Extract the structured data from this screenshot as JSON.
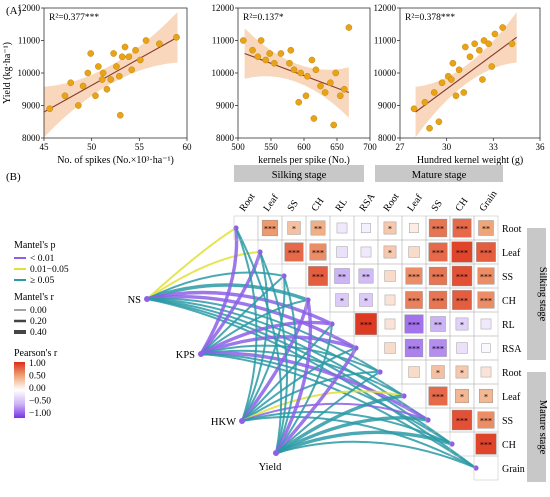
{
  "panel_labels": {
    "a": "(A)",
    "b": "(B)"
  },
  "chart_data": [
    {
      "type": "scatter",
      "ylabel": "Yield (kg·ha⁻¹)",
      "xlabel": "No. of spikes (No.×10³·ha⁻¹)",
      "annotation": "R²=0.377***",
      "xlim": [
        45,
        60
      ],
      "ylim": [
        8000,
        12000
      ],
      "xticks": [
        "45",
        "50",
        "55",
        "60"
      ],
      "yticks": [
        "8000",
        "9000",
        "10000",
        "11000",
        "12000"
      ],
      "points": [
        [
          45.6,
          8900
        ],
        [
          47.2,
          9300
        ],
        [
          47.8,
          9700
        ],
        [
          48.6,
          9000
        ],
        [
          49.1,
          9600
        ],
        [
          49.6,
          10000
        ],
        [
          49.9,
          10600
        ],
        [
          50.4,
          9300
        ],
        [
          50.7,
          10200
        ],
        [
          51.2,
          10000
        ],
        [
          51.6,
          9500
        ],
        [
          52.0,
          9800
        ],
        [
          52.3,
          10600
        ],
        [
          52.6,
          10200
        ],
        [
          52.9,
          9900
        ],
        [
          53.2,
          10500
        ],
        [
          53.5,
          10800
        ],
        [
          53.9,
          10500
        ],
        [
          54.2,
          10100
        ],
        [
          54.6,
          10700
        ],
        [
          55.1,
          10400
        ],
        [
          55.7,
          11000
        ],
        [
          57.1,
          10900
        ],
        [
          58.9,
          11100
        ],
        [
          53.0,
          8700
        ],
        [
          51.1,
          9800
        ]
      ],
      "fit": [
        [
          45,
          8800
        ],
        [
          59,
          11100
        ]
      ],
      "colors": {
        "point": "#e8a317",
        "line": "#8b3a2e",
        "band": "#f5c9a6"
      }
    },
    {
      "type": "scatter",
      "ylabel": "",
      "xlabel": "kernels per spike (No.)",
      "annotation": "R²=0.137*",
      "xlim": [
        500,
        700
      ],
      "ylim": [
        8000,
        12000
      ],
      "xticks": [
        "500",
        "550",
        "600",
        "650",
        "700"
      ],
      "yticks": [
        "8000",
        "9000",
        "10000",
        "11000",
        "12000"
      ],
      "points": [
        [
          508,
          11000
        ],
        [
          522,
          10700
        ],
        [
          535,
          11000
        ],
        [
          548,
          10600
        ],
        [
          555,
          10300
        ],
        [
          565,
          10600
        ],
        [
          578,
          10300
        ],
        [
          585,
          10100
        ],
        [
          595,
          10000
        ],
        [
          605,
          9900
        ],
        [
          612,
          10400
        ],
        [
          618,
          10100
        ],
        [
          625,
          9600
        ],
        [
          632,
          9400
        ],
        [
          640,
          9700
        ],
        [
          648,
          10000
        ],
        [
          655,
          9300
        ],
        [
          661,
          9500
        ],
        [
          668,
          11400
        ],
        [
          603,
          9300
        ],
        [
          592,
          9100
        ],
        [
          542,
          10400
        ],
        [
          530,
          10500
        ],
        [
          615,
          8600
        ],
        [
          645,
          8400
        ],
        [
          580,
          10700
        ]
      ],
      "fit": [
        [
          510,
          10600
        ],
        [
          668,
          9400
        ]
      ],
      "colors": {
        "point": "#e8a317",
        "line": "#8b3a2e",
        "band": "#f5c9a6"
      }
    },
    {
      "type": "scatter",
      "ylabel": "",
      "xlabel": "Hundred kernel weight (g)",
      "annotation": "R²=0.378***",
      "xlim": [
        27,
        36
      ],
      "ylim": [
        8000,
        12000
      ],
      "xticks": [
        "27",
        "30",
        "33",
        "36"
      ],
      "yticks": [
        "8000",
        "9000",
        "10000",
        "11000",
        "12000"
      ],
      "points": [
        [
          27.9,
          8900
        ],
        [
          28.6,
          9100
        ],
        [
          29.2,
          9400
        ],
        [
          29.7,
          9700
        ],
        [
          30.1,
          9900
        ],
        [
          30.4,
          10300
        ],
        [
          30.8,
          10100
        ],
        [
          31.2,
          10800
        ],
        [
          31.5,
          10500
        ],
        [
          31.8,
          10900
        ],
        [
          32.1,
          10700
        ],
        [
          32.4,
          11000
        ],
        [
          32.7,
          10900
        ],
        [
          33.1,
          11200
        ],
        [
          33.6,
          11400
        ],
        [
          34.2,
          10900
        ],
        [
          31.1,
          9400
        ],
        [
          30.6,
          9300
        ],
        [
          30.3,
          9800
        ],
        [
          32.3,
          9800
        ],
        [
          32.9,
          10200
        ],
        [
          29.5,
          8500
        ],
        [
          28.9,
          8300
        ]
      ],
      "fit": [
        [
          28,
          8800
        ],
        [
          34.5,
          11100
        ]
      ],
      "colors": {
        "point": "#e8a317",
        "line": "#8b3a2e",
        "band": "#f5c9a6"
      }
    },
    {
      "type": "heatmap",
      "stage_headers": [
        "Silking stage",
        "Mature stage"
      ],
      "columns": [
        "Root",
        "Leaf",
        "SS",
        "CH",
        "RL",
        "RSA",
        "Root",
        "Leaf",
        "SS",
        "CH",
        "Grain"
      ],
      "rows": [
        "Root",
        "Leaf",
        "SS",
        "CH",
        "RL",
        "RSA",
        "Root",
        "Leaf",
        "SS",
        "CH",
        "Grain"
      ],
      "cells": [
        [
          0,
          1,
          0.55,
          "***"
        ],
        [
          0,
          2,
          0.35,
          "*"
        ],
        [
          0,
          3,
          0.45,
          "**"
        ],
        [
          0,
          4,
          -0.15,
          ""
        ],
        [
          0,
          5,
          -0.1,
          ""
        ],
        [
          0,
          6,
          0.3,
          "*"
        ],
        [
          0,
          7,
          0.1,
          ""
        ],
        [
          0,
          8,
          0.7,
          "***"
        ],
        [
          0,
          9,
          0.75,
          "***"
        ],
        [
          0,
          10,
          0.5,
          "**"
        ],
        [
          1,
          2,
          0.75,
          "***"
        ],
        [
          1,
          3,
          0.6,
          "***"
        ],
        [
          1,
          4,
          -0.2,
          ""
        ],
        [
          1,
          5,
          -0.15,
          ""
        ],
        [
          1,
          6,
          0.3,
          "*"
        ],
        [
          1,
          7,
          0.2,
          ""
        ],
        [
          1,
          8,
          0.75,
          "***"
        ],
        [
          1,
          9,
          0.9,
          "***"
        ],
        [
          1,
          10,
          0.8,
          "***"
        ],
        [
          2,
          3,
          0.8,
          "***"
        ],
        [
          2,
          4,
          -0.5,
          "**"
        ],
        [
          2,
          5,
          -0.45,
          "**"
        ],
        [
          2,
          6,
          0.2,
          ""
        ],
        [
          2,
          7,
          0.6,
          "***"
        ],
        [
          2,
          8,
          0.7,
          "***"
        ],
        [
          2,
          9,
          0.85,
          "***"
        ],
        [
          2,
          10,
          0.6,
          "***"
        ],
        [
          3,
          4,
          -0.35,
          "*"
        ],
        [
          3,
          5,
          -0.35,
          "*"
        ],
        [
          3,
          6,
          0.15,
          ""
        ],
        [
          3,
          7,
          0.65,
          "***"
        ],
        [
          3,
          8,
          0.7,
          "***"
        ],
        [
          3,
          9,
          0.8,
          "***"
        ],
        [
          3,
          10,
          0.6,
          "***"
        ],
        [
          4,
          5,
          0.95,
          "***"
        ],
        [
          4,
          6,
          0.15,
          ""
        ],
        [
          4,
          7,
          -0.75,
          "***"
        ],
        [
          4,
          8,
          -0.5,
          "**"
        ],
        [
          4,
          9,
          -0.3,
          "*"
        ],
        [
          4,
          10,
          -0.15,
          ""
        ],
        [
          5,
          6,
          0.2,
          ""
        ],
        [
          5,
          7,
          -0.7,
          "***"
        ],
        [
          5,
          8,
          -0.65,
          "***"
        ],
        [
          5,
          9,
          -0.2,
          ""
        ],
        [
          5,
          10,
          -0.05,
          ""
        ],
        [
          6,
          7,
          0.2,
          ""
        ],
        [
          6,
          8,
          0.35,
          "*"
        ],
        [
          6,
          9,
          0.3,
          "*"
        ],
        [
          6,
          10,
          0.15,
          ""
        ],
        [
          7,
          8,
          0.75,
          "***"
        ],
        [
          7,
          9,
          0.4,
          "*"
        ],
        [
          7,
          10,
          0.4,
          "*"
        ],
        [
          8,
          9,
          0.85,
          "***"
        ],
        [
          8,
          10,
          0.6,
          "***"
        ],
        [
          9,
          10,
          0.9,
          "***"
        ]
      ],
      "side_stage_labels": [
        "Silking stage",
        "Mature stage"
      ]
    },
    {
      "type": "network",
      "nodes": [
        "NS",
        "KPS",
        "HKW",
        "Yield"
      ],
      "edges": [
        [
          "NS",
          0,
          "p2",
          "r1"
        ],
        [
          "NS",
          1,
          "p2",
          "r1"
        ],
        [
          "NS",
          2,
          "p3",
          "r1"
        ],
        [
          "NS",
          3,
          "p3",
          "r2"
        ],
        [
          "NS",
          4,
          "p1",
          "r2"
        ],
        [
          "NS",
          5,
          "p1",
          "r2"
        ],
        [
          "NS",
          6,
          "p3",
          "r1"
        ],
        [
          "NS",
          7,
          "p3",
          "r1"
        ],
        [
          "NS",
          8,
          "p3",
          "r1"
        ],
        [
          "NS",
          9,
          "p3",
          "r1"
        ],
        [
          "NS",
          10,
          "p3",
          "r1"
        ],
        [
          "KPS",
          0,
          "p1",
          "r2"
        ],
        [
          "KPS",
          1,
          "p1",
          "r2"
        ],
        [
          "KPS",
          2,
          "p3",
          "r1"
        ],
        [
          "KPS",
          3,
          "p3",
          "r1"
        ],
        [
          "KPS",
          4,
          "p1",
          "r2"
        ],
        [
          "KPS",
          5,
          "p1",
          "r2"
        ],
        [
          "KPS",
          6,
          "p3",
          "r1"
        ],
        [
          "KPS",
          7,
          "p3",
          "r1"
        ],
        [
          "KPS",
          8,
          "p1",
          "r2"
        ],
        [
          "KPS",
          9,
          "p3",
          "r1"
        ],
        [
          "KPS",
          10,
          "p3",
          "r1"
        ],
        [
          "HKW",
          0,
          "p3",
          "r1"
        ],
        [
          "HKW",
          1,
          "p3",
          "r1"
        ],
        [
          "HKW",
          2,
          "p3",
          "r1"
        ],
        [
          "HKW",
          3,
          "p1",
          "r2"
        ],
        [
          "HKW",
          4,
          "p3",
          "r1"
        ],
        [
          "HKW",
          5,
          "p3",
          "r1"
        ],
        [
          "HKW",
          6,
          "p3",
          "r1"
        ],
        [
          "HKW",
          7,
          "p2",
          "r1"
        ],
        [
          "HKW",
          8,
          "p1",
          "r1"
        ],
        [
          "HKW",
          9,
          "p3",
          "r1"
        ],
        [
          "HKW",
          10,
          "p3",
          "r1"
        ],
        [
          "Yield",
          0,
          "p3",
          "r1"
        ],
        [
          "Yield",
          1,
          "p3",
          "r1"
        ],
        [
          "Yield",
          2,
          "p3",
          "r1"
        ],
        [
          "Yield",
          3,
          "p1",
          "r2"
        ],
        [
          "Yield",
          4,
          "p3",
          "r1"
        ],
        [
          "Yield",
          5,
          "p1",
          "r2"
        ],
        [
          "Yield",
          6,
          "p3",
          "r1"
        ],
        [
          "Yield",
          7,
          "p3",
          "r2"
        ],
        [
          "Yield",
          8,
          "p3",
          "r2"
        ],
        [
          "Yield",
          9,
          "p3",
          "r2"
        ],
        [
          "Yield",
          10,
          "p3",
          "r1"
        ]
      ],
      "colors": {
        "p1": "#8c60e8",
        "p2": "#e0e036",
        "p3": "#2a9aa6"
      }
    }
  ],
  "legend": {
    "mantel_p_title": "Mantel's p",
    "mantel_p_items": [
      {
        "label": "< 0.01",
        "color": "#8c60e8"
      },
      {
        "label": "0.01−0.05",
        "color": "#e0e036"
      },
      {
        "label": "≥ 0.05",
        "color": "#2a9aa6"
      }
    ],
    "mantel_r_title": "Mantel's r",
    "mantel_r_items": [
      "0.00",
      "0.20",
      "0.40"
    ],
    "pearson_title": "Pearson's r",
    "pearson_ticks": [
      "1.00",
      "0.50",
      "0.00",
      "−0.50",
      "−1.00"
    ]
  }
}
